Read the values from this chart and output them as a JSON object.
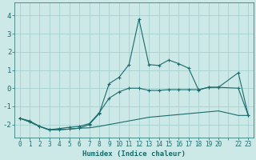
{
  "xlabel": "Humidex (Indice chaleur)",
  "background_color": "#cce9e8",
  "grid_color": "#aad4d2",
  "line_color": "#1a6b6b",
  "xlim": [
    -0.5,
    23.5
  ],
  "ylim": [
    -2.7,
    4.7
  ],
  "yticks": [
    -2,
    -1,
    0,
    1,
    2,
    3,
    4
  ],
  "xtick_labels": [
    "0",
    "1",
    "2",
    "3",
    "4",
    "5",
    "6",
    "7",
    "8",
    "9",
    "10",
    "11",
    "12",
    "13",
    "14",
    "15",
    "16",
    "17",
    "18",
    "19",
    "20",
    "",
    "22",
    "23"
  ],
  "series1_x": [
    0,
    1,
    2,
    3,
    4,
    5,
    6,
    7,
    8,
    9,
    10,
    11,
    12,
    13,
    14,
    15,
    16,
    17,
    18,
    19,
    20,
    22,
    23
  ],
  "series1_y": [
    -1.65,
    -1.85,
    -2.1,
    -2.3,
    -2.28,
    -2.25,
    -2.2,
    -2.18,
    -2.1,
    -2.0,
    -1.9,
    -1.8,
    -1.7,
    -1.6,
    -1.55,
    -1.5,
    -1.45,
    -1.4,
    -1.35,
    -1.3,
    -1.25,
    -1.5,
    -1.5
  ],
  "series2_x": [
    0,
    1,
    2,
    3,
    4,
    5,
    6,
    7,
    8,
    9,
    10,
    11,
    12,
    13,
    14,
    15,
    16,
    17,
    18,
    19,
    20,
    22,
    23
  ],
  "series2_y": [
    -1.65,
    -1.85,
    -2.1,
    -2.3,
    -2.28,
    -2.25,
    -2.2,
    -2.0,
    -1.4,
    0.25,
    0.6,
    1.3,
    3.8,
    1.3,
    1.25,
    1.55,
    1.35,
    1.1,
    -0.1,
    0.05,
    0.05,
    0.85,
    -1.5
  ],
  "series3_x": [
    0,
    1,
    2,
    3,
    4,
    5,
    6,
    7,
    8,
    9,
    10,
    11,
    12,
    13,
    14,
    15,
    16,
    17,
    18,
    19,
    20,
    22,
    23
  ],
  "series3_y": [
    -1.65,
    -1.8,
    -2.1,
    -2.28,
    -2.22,
    -2.15,
    -2.1,
    -1.95,
    -1.35,
    -0.55,
    -0.2,
    0.0,
    0.0,
    -0.12,
    -0.12,
    -0.08,
    -0.08,
    -0.08,
    -0.08,
    0.05,
    0.05,
    0.0,
    -1.5
  ]
}
